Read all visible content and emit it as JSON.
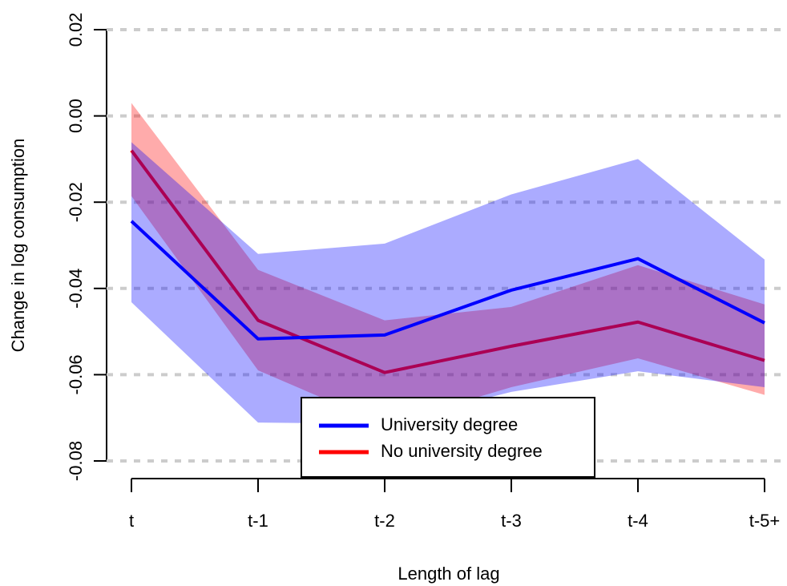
{
  "chart_data": {
    "type": "line",
    "xlabel": "Length of lag",
    "ylabel": "Change in log consumption",
    "categories": [
      "t",
      "t-1",
      "t-2",
      "t-3",
      "t-4",
      "t-5+"
    ],
    "ylim": [
      -0.08,
      0.02
    ],
    "yticks": [
      -0.08,
      -0.06,
      -0.04,
      -0.02,
      {
        "value": 0,
        "label": "0.00"
      },
      0.02
    ],
    "grid": true,
    "series": [
      {
        "name": "No university degree",
        "color": "#ff0000",
        "values": [
          -0.008,
          -0.0474,
          -0.0595,
          -0.0534,
          -0.0478,
          -0.0567
        ],
        "lower": [
          -0.0186,
          -0.059,
          -0.0716,
          -0.0629,
          -0.0562,
          -0.0647
        ],
        "upper": [
          0.003,
          -0.0357,
          -0.0474,
          -0.0443,
          -0.0346,
          -0.0437
        ]
      },
      {
        "name": "University degree",
        "color": "#0000ff",
        "values": [
          -0.0244,
          -0.0517,
          -0.0508,
          -0.0404,
          -0.0331,
          -0.048
        ],
        "lower": [
          -0.0432,
          -0.0711,
          -0.0714,
          -0.064,
          -0.0592,
          -0.0629
        ],
        "upper": [
          -0.0061,
          -0.032,
          -0.0296,
          -0.0182,
          -0.01,
          -0.0333
        ]
      }
    ],
    "legend": "bottom"
  }
}
